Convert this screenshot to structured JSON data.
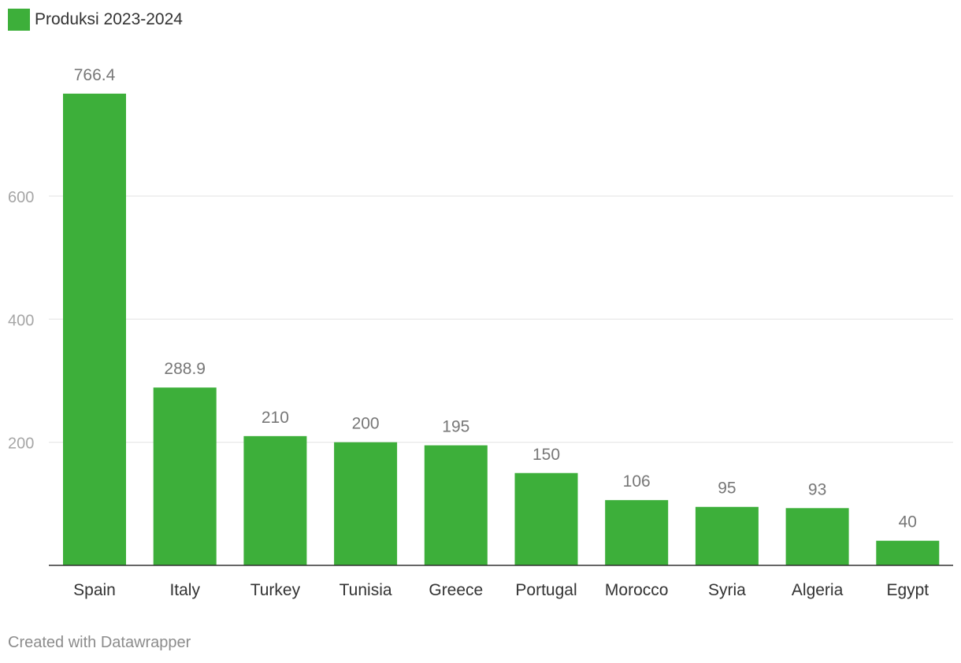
{
  "legend": {
    "label": "Produksi 2023-2024",
    "color": "#3daf3a"
  },
  "footer": {
    "credit": "Created with Datawrapper"
  },
  "chart_data": {
    "type": "bar",
    "categories": [
      "Spain",
      "Italy",
      "Turkey",
      "Tunisia",
      "Greece",
      "Portugal",
      "Morocco",
      "Syria",
      "Algeria",
      "Egypt"
    ],
    "series": [
      {
        "name": "Produksi 2023-2024",
        "values": [
          766.4,
          288.9,
          210,
          200,
          195,
          150,
          106,
          95,
          93,
          40
        ],
        "value_labels": [
          "766.4",
          "288.9",
          "210",
          "200",
          "195",
          "150",
          "106",
          "95",
          "93",
          "40"
        ]
      }
    ],
    "yticks": [
      200,
      400,
      600
    ],
    "ylim": [
      0,
      800
    ],
    "grid": true,
    "legend_position": "top-left",
    "colors": {
      "bar": "#3daf3a",
      "grid": "#e6e6e6",
      "axis": "#333333",
      "tick_label": "#a6a6a6",
      "value_label": "#777777",
      "category_label": "#333333"
    }
  }
}
